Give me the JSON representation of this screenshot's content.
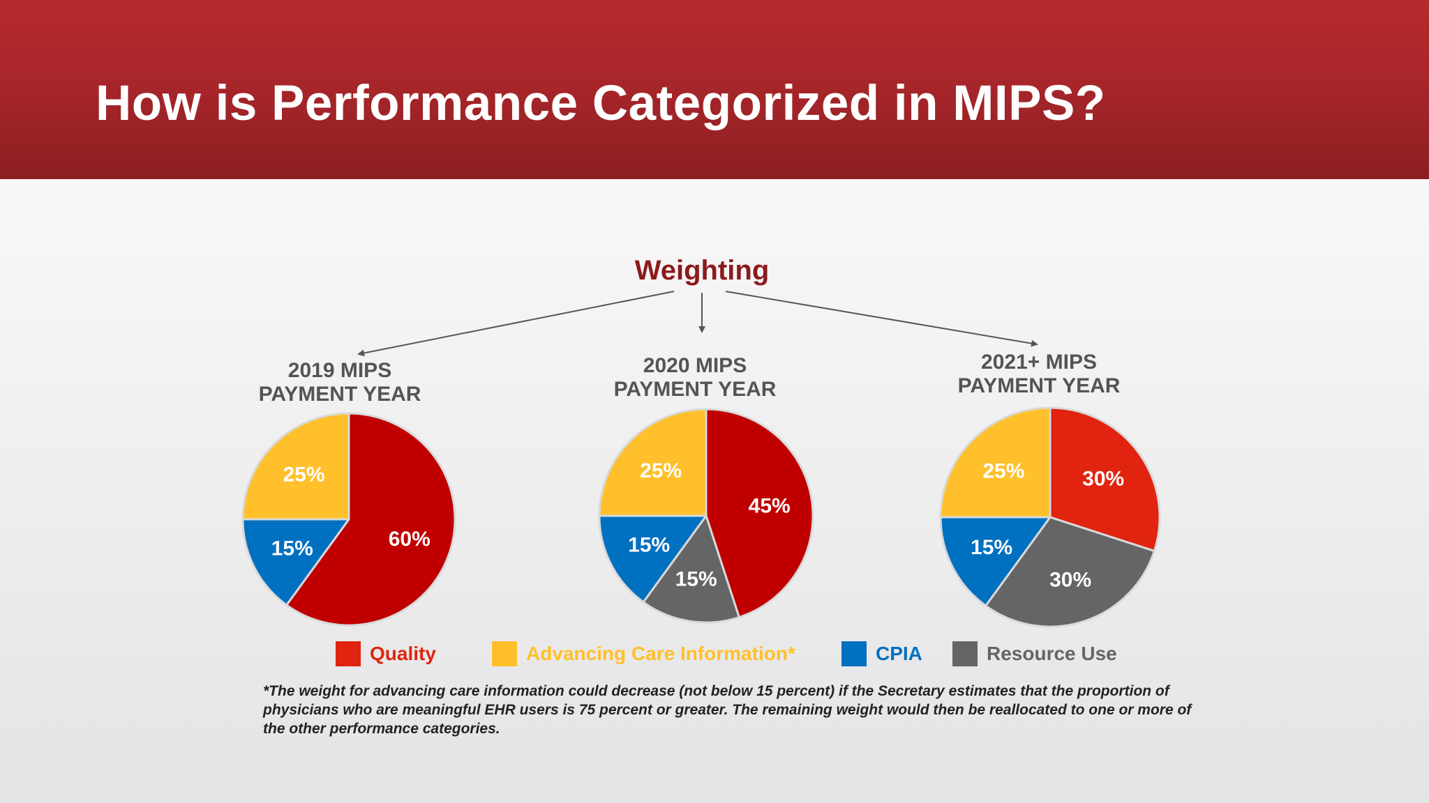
{
  "slide": {
    "title": "How is Performance Categorized in MIPS?",
    "weighting_label": "Weighting",
    "footnote": "*The weight for advancing care information could decrease (not below 15 percent) if the Secretary estimates that the proportion of physicians who are meaningful EHR users is 75 percent or greater. The remaining weight would then be reallocated to one or more of the other performance categories."
  },
  "colors": {
    "title_bar": "#a8262a",
    "quality": "#c00000",
    "quality_2021": "#e0240f",
    "aci": "#ffc02b",
    "cpia": "#0070c0",
    "resource_use": "#656565",
    "weighting": "#8b1a1c"
  },
  "legend": [
    {
      "label": "Quality",
      "color": "#e0240f",
      "text_color": "#e0240f"
    },
    {
      "label": "Advancing Care Information*",
      "color": "#ffc02b",
      "text_color": "#ffc02b"
    },
    {
      "label": "CPIA",
      "color": "#0070c0",
      "text_color": "#0070c0"
    },
    {
      "label": "Resource Use",
      "color": "#656565",
      "text_color": "#656565"
    }
  ],
  "chart_data": [
    {
      "type": "pie",
      "title_line1": "2019 MIPS",
      "title_line2": "PAYMENT YEAR",
      "slices": [
        {
          "label": "Quality",
          "value": 60,
          "display": "60%",
          "color": "#c00000"
        },
        {
          "label": "CPIA",
          "value": 15,
          "display": "15%",
          "color": "#0070c0"
        },
        {
          "label": "Advancing Care Information*",
          "value": 25,
          "display": "25%",
          "color": "#ffc02b"
        }
      ]
    },
    {
      "type": "pie",
      "title_line1": "2020 MIPS",
      "title_line2": "PAYMENT YEAR",
      "slices": [
        {
          "label": "Quality",
          "value": 45,
          "display": "45%",
          "color": "#c00000"
        },
        {
          "label": "Resource Use",
          "value": 15,
          "display": "15%",
          "color": "#656565"
        },
        {
          "label": "CPIA",
          "value": 15,
          "display": "15%",
          "color": "#0070c0"
        },
        {
          "label": "Advancing Care Information*",
          "value": 25,
          "display": "25%",
          "color": "#ffc02b"
        }
      ]
    },
    {
      "type": "pie",
      "title_line1": "2021+ MIPS",
      "title_line2": "PAYMENT YEAR",
      "slices": [
        {
          "label": "Quality",
          "value": 30,
          "display": "30%",
          "color": "#e0240f"
        },
        {
          "label": "Resource Use",
          "value": 30,
          "display": "30%",
          "color": "#656565"
        },
        {
          "label": "CPIA",
          "value": 15,
          "display": "15%",
          "color": "#0070c0"
        },
        {
          "label": "Advancing Care Information*",
          "value": 25,
          "display": "25%",
          "color": "#ffc02b"
        }
      ]
    }
  ]
}
